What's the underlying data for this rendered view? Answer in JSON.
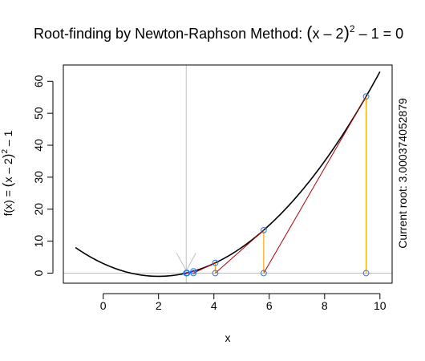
{
  "chart_data": {
    "type": "line",
    "title": {
      "main": "Root-finding by Newton-Raphson Method: ",
      "expression": {
        "open": "(",
        "inner": "x – 2",
        "close": ")",
        "power": "2",
        "tail": " – 1 = 0"
      }
    },
    "xlabel": "x",
    "ylabel": {
      "prefix": "f(x) = ",
      "open": "(",
      "inner": "x – 2",
      "close": ")",
      "power": "2",
      "tail": " – 1"
    },
    "right_label": "Current root: 3.000374052879",
    "xlim": [
      -1.44,
      10.44
    ],
    "ylim": [
      -3.15,
      65.1
    ],
    "xticks": [
      0,
      2,
      4,
      6,
      8,
      10
    ],
    "yticks": [
      0,
      10,
      20,
      30,
      40,
      50,
      60
    ],
    "function": {
      "expression": "(x-2)^2-1",
      "x_from": -1,
      "x_to": 10
    },
    "horizontal_line": {
      "y": 0,
      "color": "#bebebe"
    },
    "vertical_line": {
      "x": 3,
      "color": "#bebebe"
    },
    "iterates": [
      9.5,
      5.8,
      4.05,
      3.26,
      3.03,
      3.0004
    ],
    "colors": {
      "curve": "#000000",
      "vertical_segments": "#ffa500",
      "tangent_segments": "#b00000",
      "points": "#1f77ff",
      "arrow": "#bebebe",
      "reference_lines": "#bebebe"
    }
  }
}
